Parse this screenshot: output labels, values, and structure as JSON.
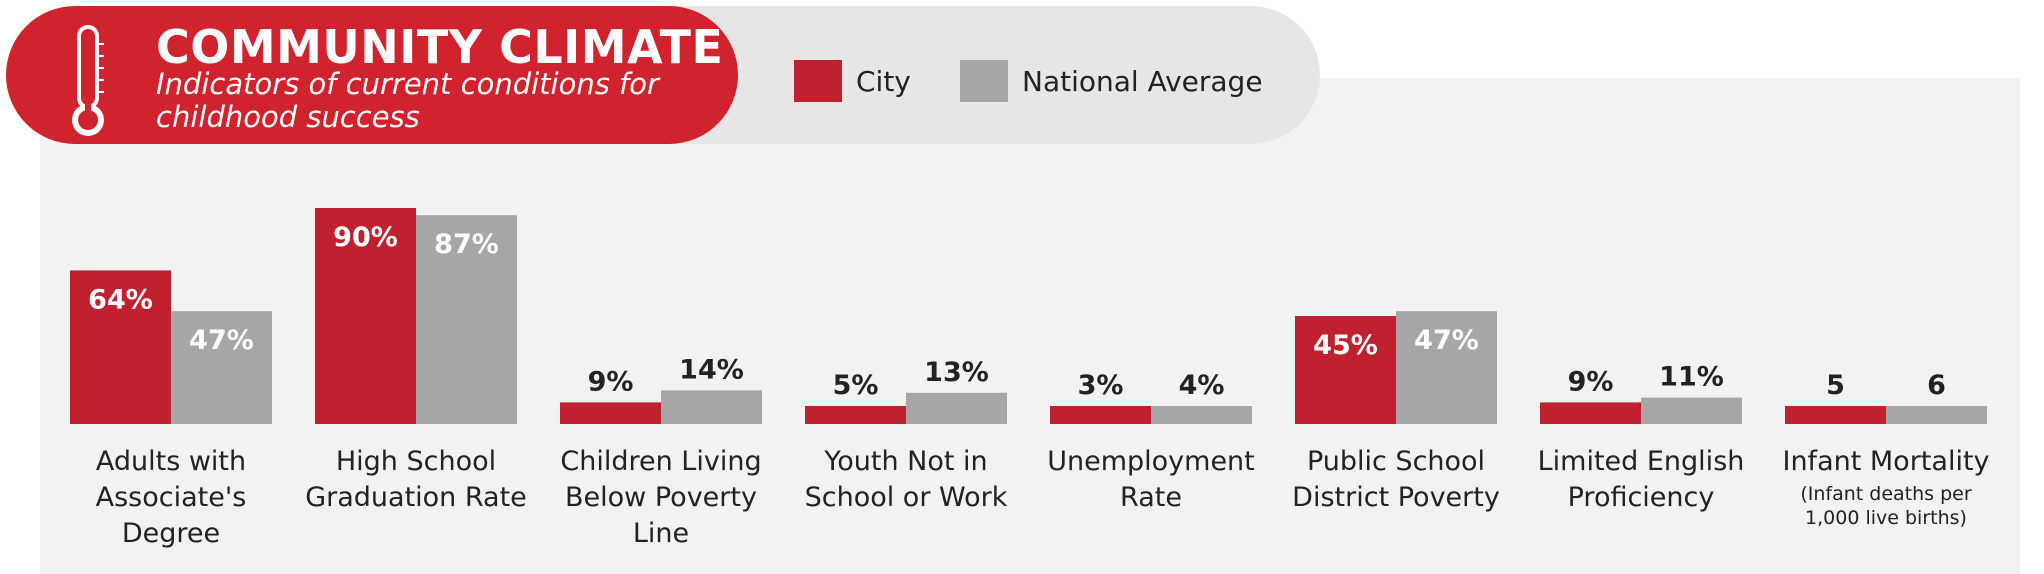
{
  "header": {
    "title": "COMMUNITY CLIMATE",
    "subtitle": "Indicators of current conditions for childhood success",
    "icon": "thermometer-icon"
  },
  "colors": {
    "city": "#c0212e",
    "national": "#a6a6a9",
    "title_bg": "#d0232e",
    "legend_bg": "#e6e6e6",
    "panel_bg": "#f2f2f2"
  },
  "chart_data": {
    "type": "bar",
    "title": "COMMUNITY CLIMATE",
    "subtitle": "Indicators of current conditions for childhood success",
    "legend": {
      "position": "top",
      "entries": [
        "City",
        "National Average"
      ]
    },
    "grid": false,
    "ylim": [
      0,
      100
    ],
    "categories": [
      "Adults with Associate's Degree",
      "High School Graduation Rate",
      "Children Living Below Poverty Line",
      "Youth Not in School or Work",
      "Unemployment Rate",
      "Public School District Poverty",
      "Limited English Proficiency",
      "Infant Mortality"
    ],
    "category_notes": [
      "",
      "",
      "",
      "",
      "",
      "",
      "",
      "(Infant deaths per 1,000 live births)"
    ],
    "series": [
      {
        "name": "City",
        "values": [
          64,
          90,
          9,
          5,
          3,
          45,
          9,
          5
        ],
        "labels": [
          "64%",
          "90%",
          "9%",
          "5%",
          "3%",
          "45%",
          "9%",
          "5"
        ]
      },
      {
        "name": "National Average",
        "values": [
          47,
          87,
          14,
          13,
          4,
          47,
          11,
          6
        ],
        "labels": [
          "47%",
          "87%",
          "14%",
          "13%",
          "4%",
          "47%",
          "11%",
          "6"
        ]
      }
    ]
  }
}
